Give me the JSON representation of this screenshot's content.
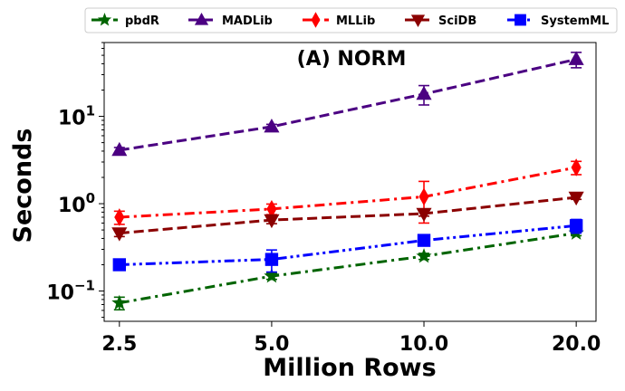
{
  "chart_data": {
    "type": "line",
    "title": "(A) NORM",
    "xlabel": "Million Rows",
    "ylabel": "Seconds",
    "x": [
      2.5,
      5.0,
      10.0,
      20.0
    ],
    "x_tick_labels": [
      "2.5",
      "5.0",
      "10.0",
      "20.0"
    ],
    "x_scale": "log2",
    "y_scale": "log10",
    "ylim": [
      0.045,
      70
    ],
    "y_ticks": [
      {
        "value": 0.1,
        "base": "10",
        "exp": "−1"
      },
      {
        "value": 1,
        "base": "10",
        "exp": "0"
      },
      {
        "value": 10,
        "base": "10",
        "exp": "1"
      }
    ],
    "legend_position": "top, outside plot",
    "grid": false,
    "series": [
      {
        "name": "pbdR",
        "color": "#006400",
        "marker": "star",
        "dash": "dashdot",
        "values": [
          0.073,
          0.148,
          0.25,
          0.46
        ],
        "err": [
          0.012,
          0.012,
          0.02,
          0.03
        ]
      },
      {
        "name": "MADLib",
        "color": "#4b0082",
        "marker": "triangle-up",
        "dash": "dashed",
        "values": [
          4.1,
          7.6,
          18,
          45
        ],
        "err": [
          0.3,
          0.5,
          4.5,
          9
        ]
      },
      {
        "name": "MLLib",
        "color": "#ff0000",
        "marker": "diamond",
        "dash": "dashdot",
        "values": [
          0.7,
          0.87,
          1.2,
          2.6
        ],
        "err": [
          0.12,
          0.12,
          0.6,
          0.45
        ]
      },
      {
        "name": "SciDB",
        "color": "#8b0000",
        "marker": "triangle-down",
        "dash": "dashed",
        "values": [
          0.46,
          0.65,
          0.77,
          1.18
        ],
        "err": [
          0.04,
          0.06,
          0.05,
          0.06
        ]
      },
      {
        "name": "SystemML",
        "color": "#0000ff",
        "marker": "square",
        "dash": "dashdotdot",
        "values": [
          0.2,
          0.23,
          0.38,
          0.56
        ],
        "err": [
          0.015,
          0.065,
          0.03,
          0.1
        ]
      }
    ]
  }
}
